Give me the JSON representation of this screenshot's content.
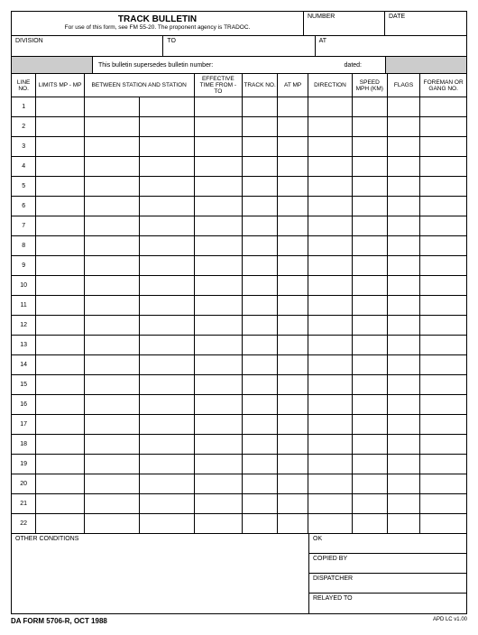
{
  "title": "TRACK BULLETIN",
  "subtitle": "For use of this form, see FM 55-20. The proponent agency is TRADOC.",
  "header": {
    "number_label": "NUMBER",
    "date_label": "DATE",
    "division_label": "DIVISION",
    "to_label": "TO",
    "at_label": "AT"
  },
  "supersede": {
    "text": "This bulletin supersedes bulletin number:",
    "dated_label": "dated:"
  },
  "columns": {
    "line_no": "LINE\nNO.",
    "limits": "LIMITS\nMP - MP",
    "between": "BETWEEN\nSTATION AND STATION",
    "effective": "EFFECTIVE\nTIME\nFROM - TO",
    "track_no": "TRACK\nNO.",
    "at_mp": "AT\nMP",
    "direction": "DIRECTION",
    "speed": "SPEED\nMPH\n(KM)",
    "flags": "FLAGS",
    "foreman": "FOREMAN\nOR GANG\nNO."
  },
  "row_numbers": [
    "1",
    "2",
    "3",
    "4",
    "5",
    "6",
    "7",
    "8",
    "9",
    "10",
    "11",
    "12",
    "13",
    "14",
    "15",
    "16",
    "17",
    "18",
    "19",
    "20",
    "21",
    "22"
  ],
  "bottom": {
    "other_conditions": "OTHER CONDITIONS",
    "ok": "OK",
    "copied_by": "COPIED BY",
    "dispatcher": "DISPATCHER",
    "relayed_to": "RELAYED TO"
  },
  "footer": {
    "form_id": "DA FORM 5706-R, OCT 1988",
    "apd": "APD LC v1.00"
  }
}
